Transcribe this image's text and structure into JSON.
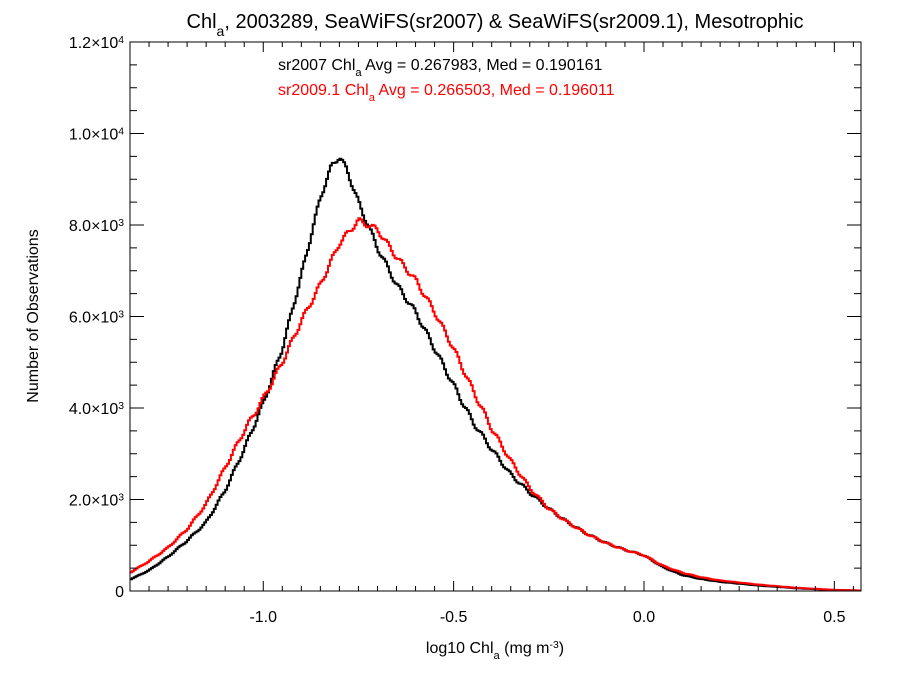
{
  "chart_data": {
    "type": "line",
    "step": true,
    "title_parts": [
      "Chl",
      "a",
      ", 2003289, SeaWiFS(sr2007) & SeaWiFS(sr2009.1), Mesotrophic"
    ],
    "xlabel_parts": [
      "log10 Chl",
      "a",
      " (mg m",
      "-3",
      ")"
    ],
    "ylabel": "Number of Observations",
    "xlim": [
      -1.35,
      0.57
    ],
    "ylim": [
      0,
      12000
    ],
    "grid": false,
    "x_ticks": [
      {
        "value": -1.0,
        "label": "-1.0"
      },
      {
        "value": -0.5,
        "label": "-0.5"
      },
      {
        "value": 0.0,
        "label": "0.0"
      },
      {
        "value": 0.5,
        "label": "0.5"
      }
    ],
    "y_ticks": [
      {
        "value": 0,
        "label": "0",
        "exp": ""
      },
      {
        "value": 2000,
        "label": "2.0×10",
        "exp": "3"
      },
      {
        "value": 4000,
        "label": "4.0×10",
        "exp": "3"
      },
      {
        "value": 6000,
        "label": "6.0×10",
        "exp": "3"
      },
      {
        "value": 8000,
        "label": "8.0×10",
        "exp": "3"
      },
      {
        "value": 10000,
        "label": "1.0×10",
        "exp": "4"
      },
      {
        "value": 12000,
        "label": "1.2×10",
        "exp": "4"
      }
    ],
    "annotations": [
      {
        "parts": [
          "sr2007 Chl",
          "a",
          " Avg = 0.267983, Med = 0.190161"
        ],
        "color": "#000000"
      },
      {
        "parts": [
          "sr2009.1 Chl",
          "a",
          " Avg = 0.266503, Med = 0.196011"
        ],
        "color": "#ff0000"
      }
    ],
    "series": [
      {
        "color": "#000000",
        "x": [
          -1.35,
          -1.3,
          -1.25,
          -1.2,
          -1.15,
          -1.1,
          -1.05,
          -1.0,
          -0.95,
          -0.9,
          -0.85,
          -0.82,
          -0.8,
          -0.78,
          -0.75,
          -0.7,
          -0.65,
          -0.6,
          -0.55,
          -0.5,
          -0.45,
          -0.4,
          -0.35,
          -0.3,
          -0.25,
          -0.2,
          -0.15,
          -0.1,
          -0.05,
          0.0,
          0.05,
          0.1,
          0.15,
          0.2,
          0.3,
          0.4,
          0.5,
          0.57
        ],
        "y": [
          250,
          450,
          750,
          1100,
          1500,
          2200,
          3100,
          4100,
          5300,
          6900,
          8600,
          9300,
          9500,
          9200,
          8500,
          7500,
          6700,
          6100,
          5300,
          4500,
          3700,
          3100,
          2550,
          2150,
          1800,
          1500,
          1250,
          1050,
          900,
          780,
          520,
          350,
          260,
          200,
          120,
          60,
          20,
          10
        ]
      },
      {
        "color": "#ff0000",
        "x": [
          -1.35,
          -1.3,
          -1.25,
          -1.2,
          -1.15,
          -1.1,
          -1.05,
          -1.0,
          -0.95,
          -0.9,
          -0.85,
          -0.8,
          -0.75,
          -0.7,
          -0.65,
          -0.6,
          -0.55,
          -0.5,
          -0.45,
          -0.4,
          -0.35,
          -0.3,
          -0.25,
          -0.2,
          -0.15,
          -0.1,
          -0.05,
          0.0,
          0.05,
          0.1,
          0.15,
          0.2,
          0.3,
          0.4,
          0.5,
          0.57
        ],
        "y": [
          400,
          650,
          950,
          1350,
          1900,
          2700,
          3500,
          4200,
          5000,
          5900,
          6700,
          7600,
          8100,
          7900,
          7300,
          6800,
          6100,
          5300,
          4400,
          3550,
          2850,
          2250,
          1800,
          1500,
          1250,
          1050,
          900,
          780,
          550,
          400,
          300,
          230,
          140,
          70,
          25,
          10
        ]
      }
    ]
  }
}
